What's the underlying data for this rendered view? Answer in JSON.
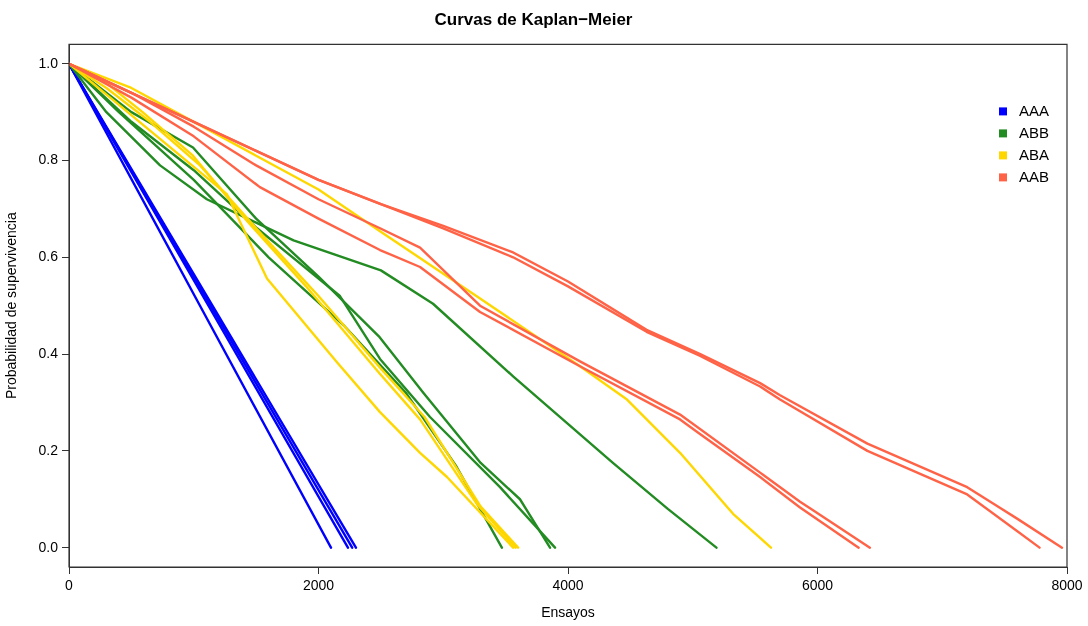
{
  "chart_data": {
    "type": "line",
    "title": "Curvas de Kaplan−Meier",
    "xlabel": "Ensayos",
    "ylabel": "Probabilidad de supervivencia",
    "xlim": [
      0,
      8000
    ],
    "ylim": [
      -0.04,
      1.04
    ],
    "xticks": [
      0,
      2000,
      4000,
      6000,
      8000
    ],
    "yticks": [
      {
        "value": 0,
        "label": "0.0"
      },
      0.2,
      0.4,
      0.6,
      0.8,
      {
        "value": 1,
        "label": "1.0"
      }
    ],
    "grid": false,
    "legend": "top right",
    "marker": "none",
    "line_style": "solid",
    "series": [
      {
        "name": "AAA",
        "color": "#0000ff",
        "x": [
          0,
          1050,
          2100
        ],
        "values": [
          1,
          0.5,
          0
        ]
      },
      {
        "color": "#0000ff",
        "x": [
          0,
          1118,
          2236
        ],
        "values": [
          1,
          0.5,
          0
        ]
      },
      {
        "color": "#0000ff",
        "x": [
          0,
          1135,
          2270
        ],
        "values": [
          1,
          0.5,
          0
        ]
      },
      {
        "color": "#0000ff",
        "x": [
          0,
          1150,
          2300
        ],
        "values": [
          1,
          0.5,
          0
        ]
      },
      {
        "name": "ABB",
        "color": "#228b22",
        "x": [
          0,
          300,
          730,
          1105,
          1800,
          2500,
          2918,
          3560,
          4360,
          4800,
          5190
        ],
        "values": [
          1,
          0.9,
          0.79,
          0.72,
          0.635,
          0.573,
          0.504,
          0.354,
          0.175,
          0.08,
          0
        ]
      },
      {
        "color": "#228b22",
        "x": [
          0,
          400,
          1000,
          1600,
          2200,
          2700,
          3100,
          3470
        ],
        "values": [
          1,
          0.9,
          0.76,
          0.6,
          0.46,
          0.32,
          0.17,
          0
        ]
      },
      {
        "color": "#228b22",
        "x": [
          0,
          500,
          994,
          1500,
          2000,
          2490,
          2840,
          3300,
          3615,
          3856
        ],
        "values": [
          1,
          0.9,
          0.827,
          0.68,
          0.56,
          0.435,
          0.32,
          0.175,
          0.1,
          0
        ]
      },
      {
        "color": "#228b22",
        "x": [
          0,
          500,
          1000,
          1507,
          2172,
          2493,
          2894,
          3455,
          3896
        ],
        "values": [
          1,
          0.88,
          0.78,
          0.66,
          0.52,
          0.39,
          0.27,
          0.125,
          0
        ]
      },
      {
        "name": "ABA",
        "color": "#ffd700",
        "x": [
          0,
          500,
          1000,
          1500,
          2000,
          2493,
          3295,
          4096,
          4473,
          4898,
          5323,
          5627
        ],
        "values": [
          1,
          0.95,
          0.88,
          0.81,
          0.74,
          0.654,
          0.515,
          0.375,
          0.306,
          0.196,
          0.07,
          0
        ]
      },
      {
        "color": "#ffd700",
        "x": [
          0,
          330,
          1267,
          1587,
          2148,
          2493,
          2814,
          3030,
          3560
        ],
        "values": [
          1,
          0.93,
          0.73,
          0.556,
          0.383,
          0.28,
          0.196,
          0.146,
          0
        ]
      },
      {
        "color": "#ffd700",
        "x": [
          0,
          300,
          590,
          994,
          1427,
          1900,
          2490,
          2814,
          3270,
          3580
        ],
        "values": [
          1,
          0.96,
          0.9,
          0.81,
          0.675,
          0.54,
          0.36,
          0.265,
          0.09,
          0
        ]
      },
      {
        "color": "#ffd700",
        "x": [
          0,
          300,
          650,
          1050,
          1500,
          2000,
          2500,
          2850,
          3300,
          3600
        ],
        "values": [
          1,
          0.95,
          0.88,
          0.79,
          0.66,
          0.52,
          0.37,
          0.27,
          0.085,
          0
        ]
      },
      {
        "name": "AAB",
        "color": "#ff6347",
        "x": [
          0,
          500,
          1000,
          1500,
          2000,
          2500,
          3000,
          3560,
          4000,
          4630,
          5060,
          5540,
          5700,
          6400,
          7200,
          7780
        ],
        "values": [
          1,
          0.94,
          0.88,
          0.82,
          0.76,
          0.71,
          0.66,
          0.6,
          0.54,
          0.446,
          0.396,
          0.333,
          0.306,
          0.2,
          0.11,
          0
        ]
      },
      {
        "color": "#ff6347",
        "x": [
          0,
          500,
          1000,
          1500,
          2000,
          2500,
          3000,
          3560,
          4000,
          4630,
          5060,
          5540,
          5700,
          6400,
          7200,
          7600,
          7960
        ],
        "values": [
          1,
          0.94,
          0.88,
          0.82,
          0.76,
          0.71,
          0.665,
          0.61,
          0.55,
          0.45,
          0.4,
          0.34,
          0.315,
          0.215,
          0.125,
          0.06,
          0
        ]
      },
      {
        "color": "#ff6347",
        "x": [
          0,
          500,
          1000,
          1530,
          2000,
          2493,
          2814,
          3295,
          4096,
          4898,
          5058,
          5540,
          5860,
          6330
        ],
        "values": [
          1,
          0.93,
          0.85,
          0.745,
          0.68,
          0.615,
          0.58,
          0.487,
          0.375,
          0.265,
          0.235,
          0.146,
          0.083,
          0
        ]
      },
      {
        "color": "#ff6347",
        "x": [
          0,
          500,
          1000,
          1500,
          2000,
          2493,
          2814,
          3295,
          4096,
          4898,
          5540,
          5860,
          6420
        ],
        "values": [
          1,
          0.94,
          0.87,
          0.79,
          0.72,
          0.66,
          0.62,
          0.5,
          0.385,
          0.275,
          0.155,
          0.095,
          0
        ]
      }
    ]
  }
}
